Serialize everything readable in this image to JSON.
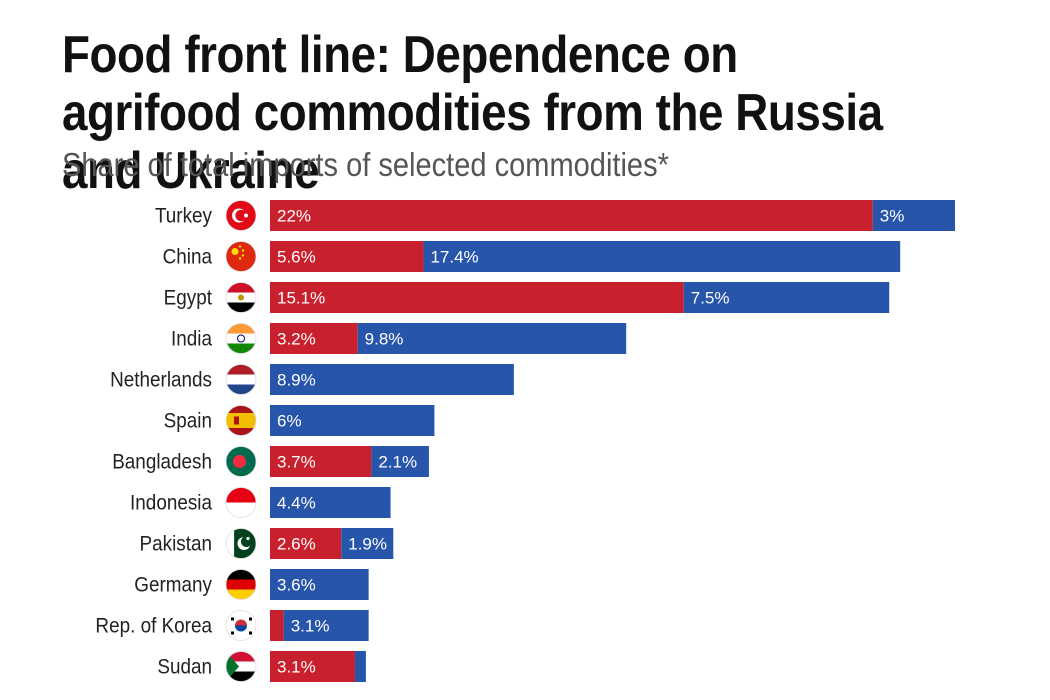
{
  "header": {
    "title": "Food front line: Dependence on agrifood commodities from the Russia and Ukraine",
    "subtitle": "Share of total imports of selected commodities*"
  },
  "colors": {
    "series_a": "#c8202c",
    "series_b": "#2755aa"
  },
  "chart_data": {
    "type": "bar",
    "orientation": "horizontal",
    "stacked": true,
    "categories": [
      "Turkey",
      "China",
      "Egypt",
      "India",
      "Netherlands",
      "Spain",
      "Bangladesh",
      "Indonesia",
      "Pakistan",
      "Germany",
      "Rep. of Korea",
      "Sudan"
    ],
    "flags": [
      "turkey-flag-icon",
      "china-flag-icon",
      "egypt-flag-icon",
      "india-flag-icon",
      "netherlands-flag-icon",
      "spain-flag-icon",
      "bangladesh-flag-icon",
      "indonesia-flag-icon",
      "pakistan-flag-icon",
      "germany-flag-icon",
      "korea-flag-icon",
      "sudan-flag-icon"
    ],
    "series": [
      {
        "values": [
          22,
          5.6,
          15.1,
          3.2,
          0,
          0,
          3.7,
          0,
          2.6,
          0,
          0.5,
          3.1
        ],
        "labels": [
          "22%",
          "5.6%",
          "15.1%",
          "3.2%",
          "",
          "",
          "3.7%",
          "",
          "2.6%",
          "",
          "",
          "3.1%"
        ]
      },
      {
        "values": [
          3,
          17.4,
          7.5,
          9.8,
          8.9,
          6,
          2.1,
          4.4,
          1.9,
          3.6,
          3.1,
          0.4
        ],
        "labels": [
          "3%",
          "17.4%",
          "7.5%",
          "9.8%",
          "8.9%",
          "6%",
          "2.1%",
          "4.4%",
          "1.9%",
          "3.6%",
          "3.1%",
          ""
        ]
      }
    ],
    "xlim": [
      0,
      26
    ],
    "grid": false,
    "legend": "none"
  }
}
